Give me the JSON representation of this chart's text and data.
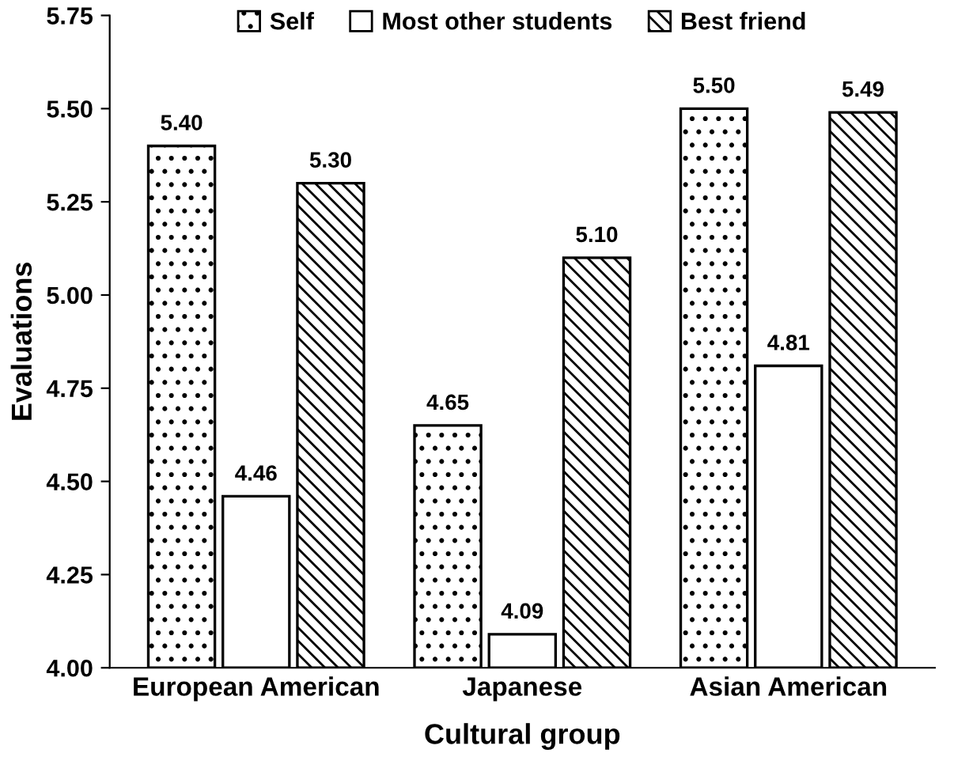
{
  "chart_data": {
    "type": "bar",
    "xlabel": "Cultural group",
    "ylabel": "Evaluations",
    "categories": [
      "European American",
      "Japanese",
      "Asian American"
    ],
    "series": [
      {
        "name": "Self",
        "color": "#000000",
        "values": [
          5.4,
          4.65,
          5.5
        ],
        "value_labels": [
          "5.40",
          "4.65",
          "5.50"
        ]
      },
      {
        "name": "Most other students",
        "color": "#ffffff",
        "values": [
          4.46,
          4.09,
          4.81
        ],
        "value_labels": [
          "4.46",
          "4.09",
          "4.81"
        ]
      },
      {
        "name": "Best friend",
        "color": "#000000",
        "values": [
          5.3,
          5.1,
          5.49
        ],
        "value_labels": [
          "5.30",
          "5.10",
          "5.49"
        ]
      }
    ],
    "ylim": [
      4.0,
      5.75
    ],
    "yticks": [
      {
        "value": 4.0,
        "label": "4.00"
      },
      {
        "value": 4.25,
        "label": "4.25"
      },
      {
        "value": 4.5,
        "label": "4.50"
      },
      {
        "value": 4.75,
        "label": "4.75"
      },
      {
        "value": 5.0,
        "label": "5.00"
      },
      {
        "value": 5.25,
        "label": "5.25"
      },
      {
        "value": 5.5,
        "label": "5.50"
      },
      {
        "value": 5.75,
        "label": "5.75"
      }
    ],
    "legend": "top",
    "grid": false
  }
}
